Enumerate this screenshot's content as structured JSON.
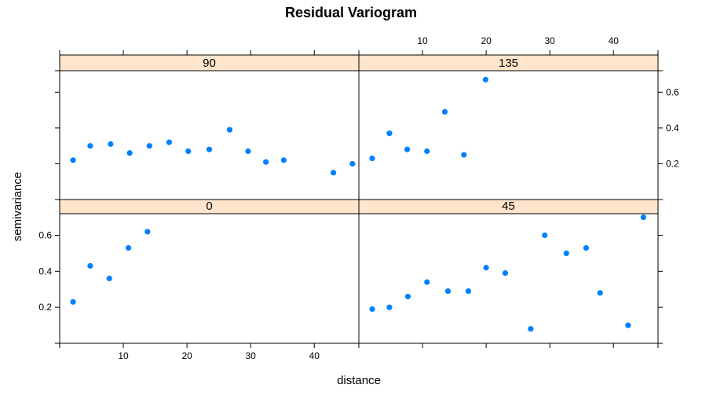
{
  "chart_data": {
    "type": "scatter",
    "title": "Residual Variogram",
    "xlabel": "distance",
    "ylabel": "semivariance",
    "xlim": [
      0,
      47
    ],
    "ylim": [
      0,
      0.72
    ],
    "x_ticks": [
      10,
      20,
      30,
      40
    ],
    "x_tick_labels": [
      "10",
      "20",
      "30",
      "40"
    ],
    "y_ticks": [
      0.2,
      0.4,
      0.6
    ],
    "y_tick_labels": [
      "0.2",
      "0.4",
      "0.6"
    ],
    "point_color": "#0080ff",
    "strip_color": "#ffe5cc",
    "panels": [
      {
        "strip": "90",
        "x": [
          2.1,
          4.8,
          8.0,
          11.0,
          14.1,
          17.2,
          20.2,
          23.5,
          26.7,
          29.6,
          32.4,
          35.2,
          43.0,
          46.0
        ],
        "y": [
          0.22,
          0.3,
          0.31,
          0.26,
          0.3,
          0.32,
          0.27,
          0.28,
          0.39,
          0.27,
          0.21,
          0.22,
          0.15,
          0.2
        ]
      },
      {
        "strip": "135",
        "x": [
          2.1,
          4.8,
          7.6,
          10.7,
          13.5,
          16.5,
          19.9
        ],
        "y": [
          0.23,
          0.37,
          0.28,
          0.27,
          0.49,
          0.25,
          0.67
        ]
      },
      {
        "strip": "0",
        "x": [
          2.1,
          4.8,
          7.8,
          10.8,
          13.8
        ],
        "y": [
          0.23,
          0.43,
          0.36,
          0.53,
          0.62
        ]
      },
      {
        "strip": "45",
        "x": [
          2.1,
          4.8,
          7.7,
          10.7,
          14.0,
          17.2,
          20.0,
          23.0,
          27.0,
          29.2,
          32.6,
          35.7,
          37.9,
          42.3,
          44.7
        ],
        "y": [
          0.19,
          0.2,
          0.26,
          0.34,
          0.29,
          0.29,
          0.42,
          0.39,
          0.08,
          0.6,
          0.5,
          0.53,
          0.28,
          0.1,
          0.7
        ]
      }
    ]
  }
}
